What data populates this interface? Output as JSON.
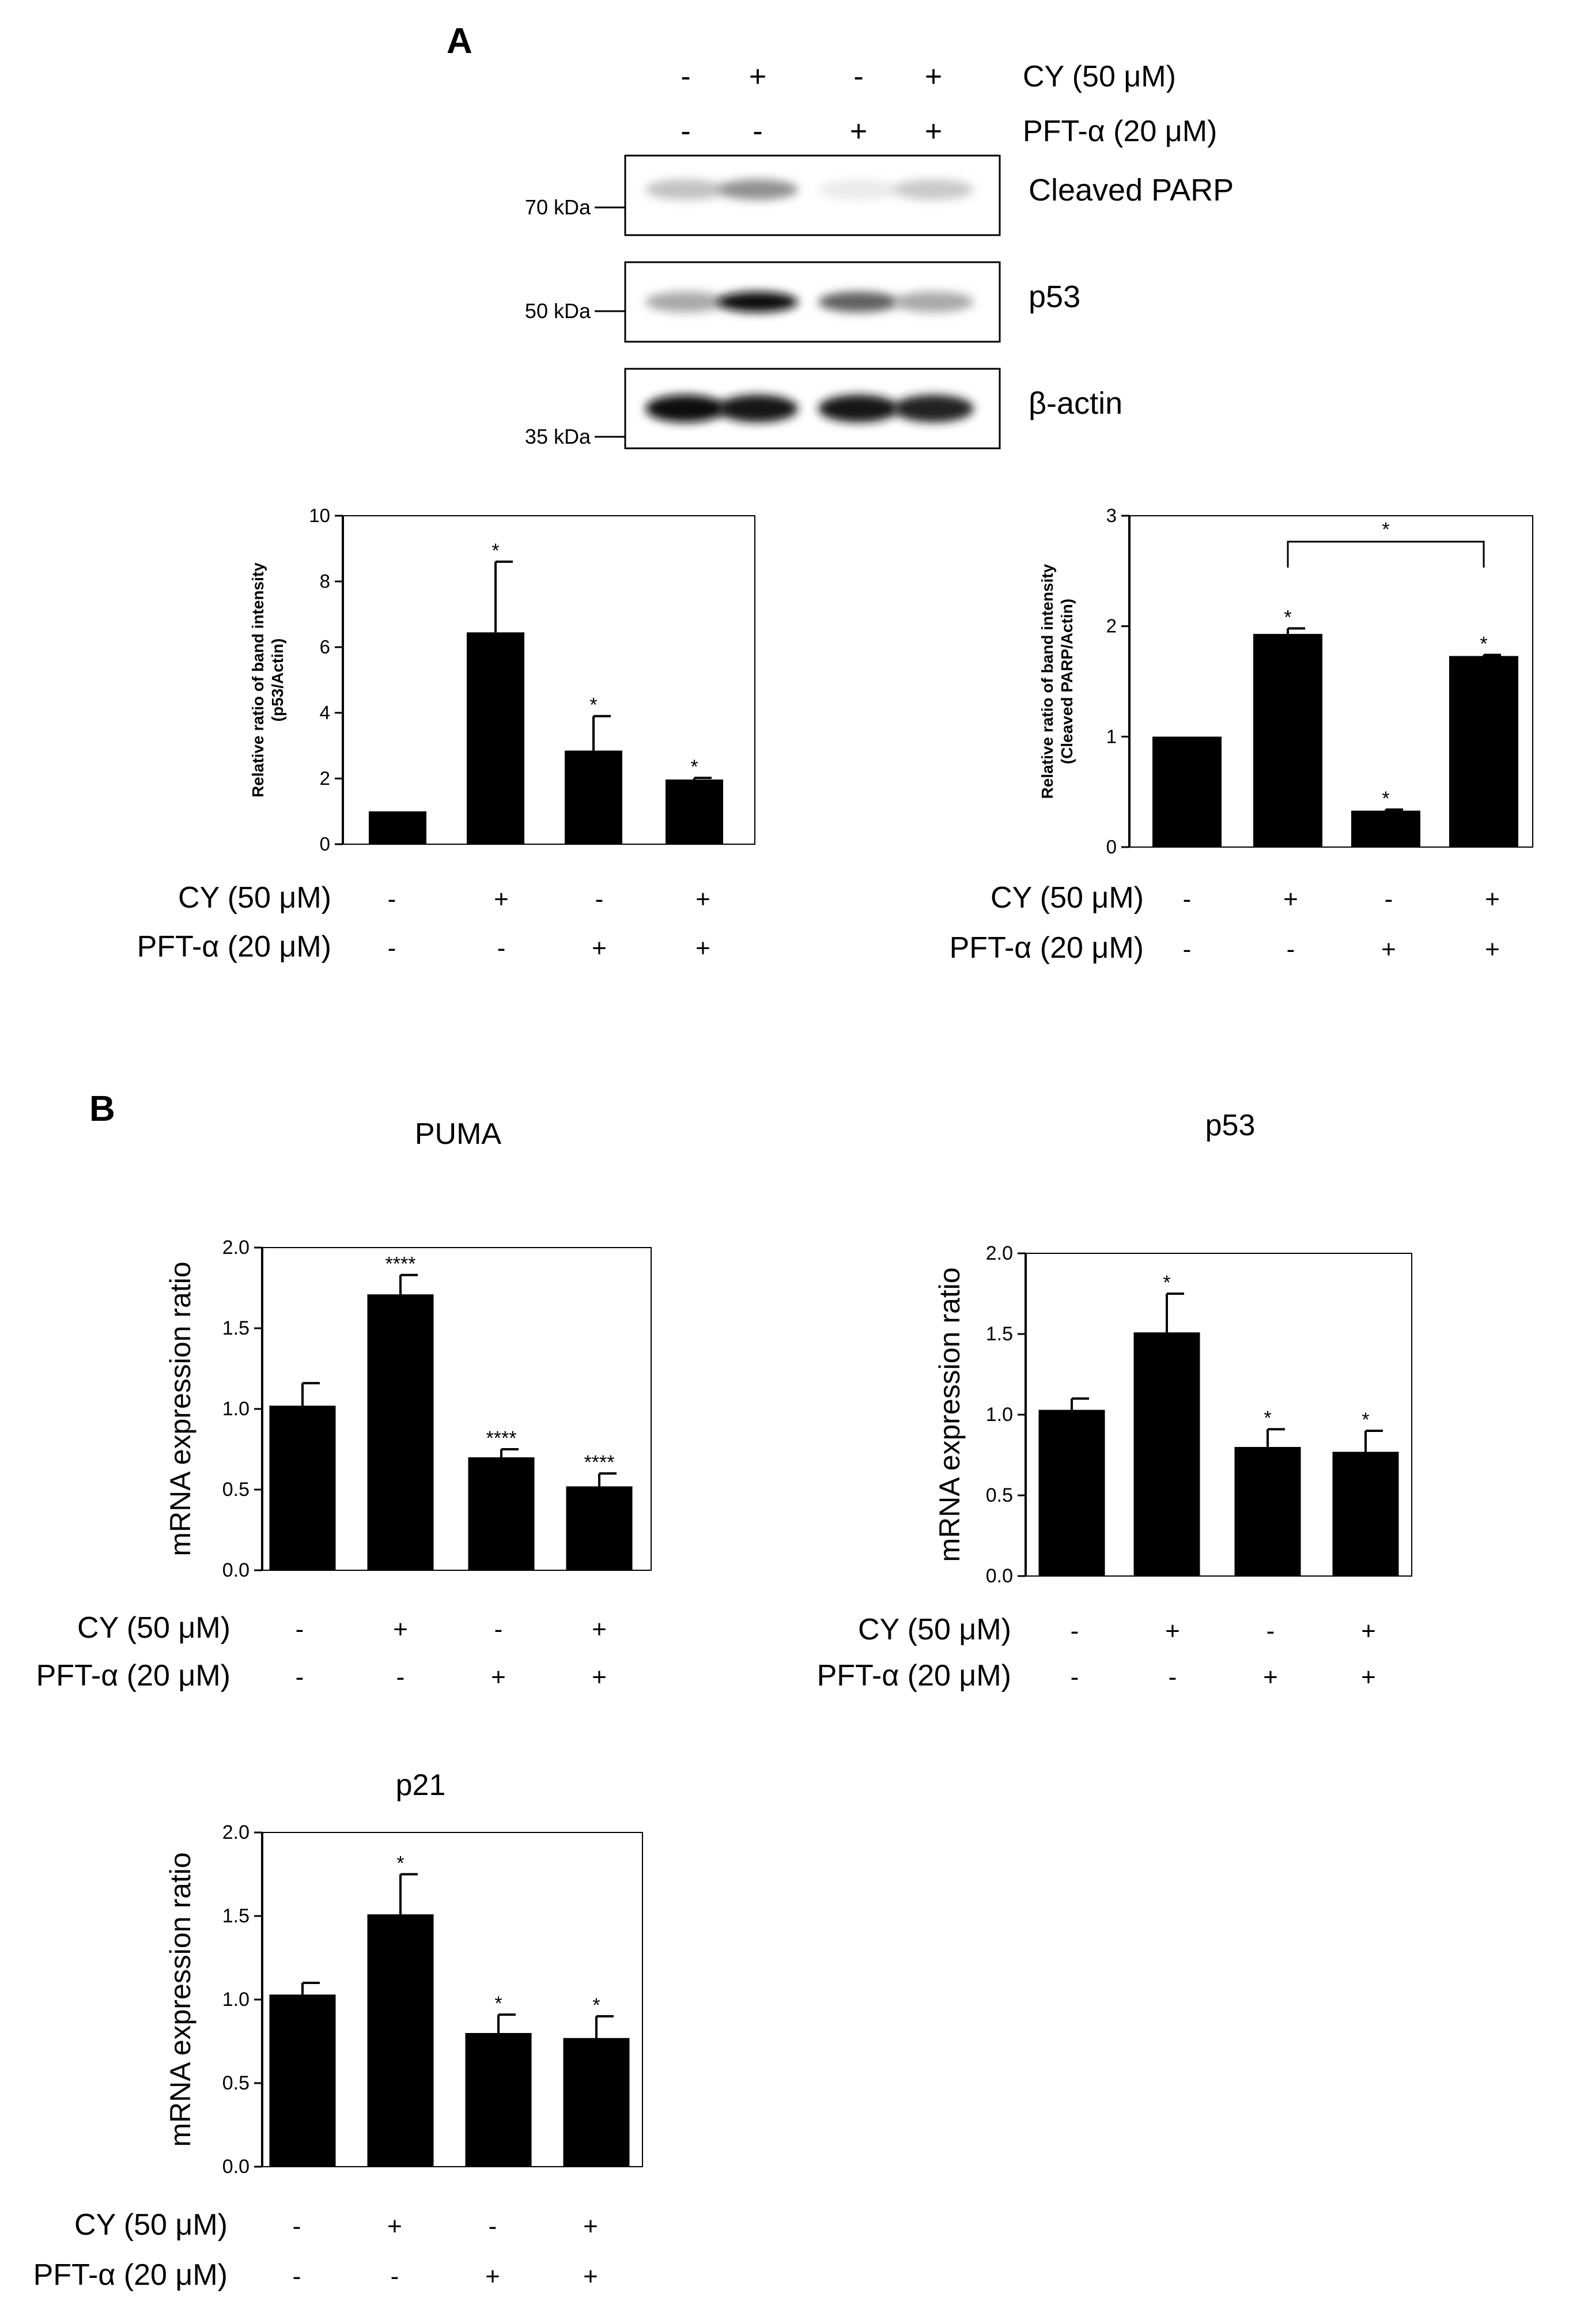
{
  "panels": {
    "A": "A",
    "B": "B"
  },
  "western_blot": {
    "treatments": {
      "cy": {
        "label": "CY (50 μM)",
        "signs": [
          "-",
          "+",
          "-",
          "+"
        ]
      },
      "pft": {
        "label": "PFT-α (20 μM)",
        "signs": [
          "-",
          "-",
          "+",
          "+"
        ]
      }
    },
    "bands": [
      {
        "label": "Cleaved  PARP",
        "marker": "70 kDa",
        "intensities": [
          0.25,
          0.45,
          0.08,
          0.22
        ]
      },
      {
        "label": "p53",
        "marker": "50 kDa",
        "intensities": [
          0.35,
          1.0,
          0.65,
          0.35
        ]
      },
      {
        "label": "β-actin",
        "marker": "35 kDa",
        "intensities": [
          1.0,
          0.95,
          0.95,
          0.9
        ]
      }
    ]
  },
  "x_treatment_labels": {
    "cy": "CY (50 μM)",
    "pft": "PFT-α (20 μM)",
    "cy_signs": [
      "-",
      "+",
      "-",
      "+"
    ],
    "pft_signs": [
      "-",
      "-",
      "+",
      "+"
    ]
  },
  "chart_data": [
    {
      "type": "bar",
      "title": "",
      "ylabel": "Relative ratio of band intensity\n(p53/Actin)",
      "ylim": [
        0,
        10
      ],
      "yticks": [
        "0",
        "2",
        "4",
        "6",
        "8",
        "10"
      ],
      "categories": [
        "CY-/PFT-",
        "CY+/PFT-",
        "CY-/PFT+",
        "CY+/PFT+"
      ],
      "values": [
        1.0,
        6.45,
        2.85,
        1.97
      ],
      "errors": [
        0,
        2.15,
        1.05,
        0.05
      ],
      "annotations": [
        "",
        "*",
        "*",
        "*"
      ]
    },
    {
      "type": "bar",
      "title": "",
      "ylabel": "Relative ratio of band intensity\n(Cleaved PARP/Actin)",
      "ylim": [
        0,
        3
      ],
      "yticks": [
        "0",
        "1",
        "2",
        "3"
      ],
      "categories": [
        "CY-/PFT-",
        "CY+/PFT-",
        "CY-/PFT+",
        "CY+/PFT+"
      ],
      "values": [
        1.0,
        1.93,
        0.33,
        1.73
      ],
      "errors": [
        0,
        0.05,
        0.01,
        0.01
      ],
      "annotations": [
        "",
        "*",
        "*",
        "*"
      ],
      "bracket": {
        "from": 1,
        "to": 3,
        "label": "*"
      }
    },
    {
      "type": "bar",
      "title": "PUMA",
      "ylabel": "mRNA expression ratio",
      "ylim": [
        0,
        2
      ],
      "yticks": [
        "0.0",
        "0.5",
        "1.0",
        "1.5",
        "2.0"
      ],
      "categories": [
        "CY-/PFT-",
        "CY+/PFT-",
        "CY-/PFT+",
        "CY+/PFT+"
      ],
      "values": [
        1.02,
        1.71,
        0.7,
        0.52
      ],
      "errors": [
        0.14,
        0.12,
        0.05,
        0.08
      ],
      "annotations": [
        "",
        "****",
        "****",
        "****"
      ]
    },
    {
      "type": "bar",
      "title": "p53",
      "ylabel": "mRNA expression ratio",
      "ylim": [
        0,
        2
      ],
      "yticks": [
        "0.0",
        "0.5",
        "1.0",
        "1.5",
        "2.0"
      ],
      "categories": [
        "CY-/PFT-",
        "CY+/PFT-",
        "CY-/PFT+",
        "CY+/PFT+"
      ],
      "values": [
        1.03,
        1.51,
        0.8,
        0.77
      ],
      "errors": [
        0.07,
        0.24,
        0.11,
        0.13
      ],
      "annotations": [
        "",
        "*",
        "*",
        "*"
      ]
    },
    {
      "type": "bar",
      "title": "p21",
      "ylabel": "mRNA expression ratio",
      "ylim": [
        0,
        2
      ],
      "yticks": [
        "0.0",
        "0.5",
        "1.0",
        "1.5",
        "2.0"
      ],
      "categories": [
        "CY-/PFT-",
        "CY+/PFT-",
        "CY-/PFT+",
        "CY+/PFT+"
      ],
      "values": [
        1.03,
        1.51,
        0.8,
        0.77
      ],
      "errors": [
        0.07,
        0.24,
        0.11,
        0.13
      ],
      "annotations": [
        "",
        "*",
        "*",
        "*"
      ]
    }
  ]
}
